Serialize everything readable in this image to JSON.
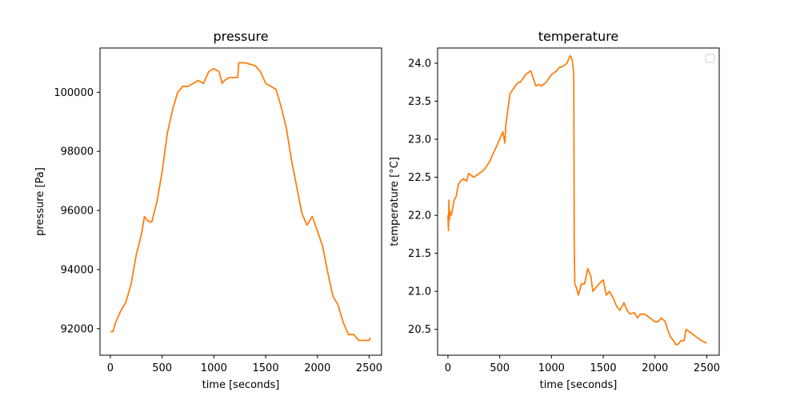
{
  "chart_data": [
    {
      "type": "line",
      "title": "pressure",
      "xlabel": "time [seconds]",
      "ylabel": "pressure [Pa]",
      "xlim": [
        -100,
        2620
      ],
      "ylim": [
        91100,
        101500
      ],
      "x_ticks": [
        0,
        500,
        1000,
        1500,
        2000,
        2500
      ],
      "y_ticks": [
        92000,
        94000,
        96000,
        98000,
        100000
      ],
      "color": "#ff7f0e",
      "grid": false,
      "series": [
        {
          "x": [
            0,
            25,
            50,
            100,
            150,
            200,
            250,
            300,
            330,
            360,
            400,
            450,
            500,
            550,
            600,
            650,
            700,
            750,
            800,
            850,
            900,
            950,
            1000,
            1050,
            1080,
            1100,
            1150,
            1200,
            1230,
            1240,
            1300,
            1350,
            1400,
            1450,
            1500,
            1550,
            1600,
            1650,
            1700,
            1750,
            1800,
            1850,
            1900,
            1950,
            2000,
            2050,
            2100,
            2150,
            2200,
            2250,
            2300,
            2350,
            2400,
            2450,
            2500,
            2510
          ],
          "y": [
            91900,
            91900,
            92200,
            92600,
            92900,
            93500,
            94500,
            95200,
            95800,
            95650,
            95600,
            96300,
            97300,
            98600,
            99400,
            100000,
            100200,
            100200,
            100300,
            100400,
            100300,
            100700,
            100800,
            100700,
            100300,
            100400,
            100500,
            100500,
            100500,
            101000,
            101000,
            100950,
            100900,
            100700,
            100300,
            100200,
            100100,
            99500,
            98800,
            97700,
            96800,
            95900,
            95500,
            95800,
            95300,
            94800,
            93900,
            93100,
            92800,
            92200,
            91800,
            91800,
            91600,
            91600,
            91600,
            91700
          ]
        }
      ]
    },
    {
      "type": "line",
      "title": "temperature",
      "xlabel": "time [seconds]",
      "ylabel": "temperature [°C]",
      "xlim": [
        -100,
        2620
      ],
      "ylim": [
        20.16,
        24.2
      ],
      "x_ticks": [
        0,
        500,
        1000,
        1500,
        2000,
        2500
      ],
      "y_ticks": [
        20.5,
        21.0,
        21.5,
        22.0,
        22.5,
        23.0,
        23.5,
        24.0
      ],
      "y_tick_labels": [
        "20.5",
        "21.0",
        "21.5",
        "22.0",
        "22.5",
        "23.0",
        "23.5",
        "24.0"
      ],
      "color": "#ff7f0e",
      "grid": false,
      "legend": "top-right",
      "series": [
        {
          "x": [
            0,
            5,
            10,
            15,
            20,
            30,
            40,
            60,
            80,
            100,
            120,
            150,
            180,
            200,
            250,
            300,
            350,
            400,
            450,
            500,
            530,
            550,
            560,
            580,
            600,
            650,
            680,
            700,
            750,
            800,
            850,
            880,
            900,
            950,
            1000,
            1050,
            1080,
            1100,
            1150,
            1180,
            1200,
            1215,
            1220,
            1225,
            1240,
            1260,
            1290,
            1320,
            1350,
            1380,
            1400,
            1430,
            1460,
            1500,
            1530,
            1560,
            1600,
            1630,
            1660,
            1700,
            1730,
            1760,
            1800,
            1830,
            1860,
            1900,
            1950,
            2000,
            2030,
            2060,
            2100,
            2120,
            2150,
            2180,
            2200,
            2220,
            2250,
            2280,
            2300,
            2320,
            2350,
            2380,
            2400,
            2420,
            2450,
            2480,
            2500
          ],
          "y": [
            22.0,
            21.8,
            22.2,
            21.95,
            22.05,
            22.0,
            22.05,
            22.2,
            22.25,
            22.4,
            22.45,
            22.48,
            22.45,
            22.55,
            22.5,
            22.55,
            22.6,
            22.7,
            22.85,
            23.0,
            23.1,
            22.95,
            23.2,
            23.4,
            23.6,
            23.7,
            23.75,
            23.75,
            23.85,
            23.9,
            23.7,
            23.72,
            23.7,
            23.75,
            23.85,
            23.9,
            23.95,
            23.95,
            24.0,
            24.1,
            24.05,
            23.85,
            21.6,
            21.1,
            21.05,
            20.95,
            21.1,
            21.1,
            21.3,
            21.2,
            21.0,
            21.05,
            21.1,
            21.15,
            20.95,
            21.0,
            20.9,
            20.8,
            20.75,
            20.85,
            20.75,
            20.7,
            20.72,
            20.65,
            20.7,
            20.7,
            20.65,
            20.6,
            20.6,
            20.65,
            20.6,
            20.5,
            20.4,
            20.35,
            20.3,
            20.3,
            20.35,
            20.35,
            20.5,
            20.48,
            20.45,
            20.42,
            20.4,
            20.38,
            20.35,
            20.33,
            20.32
          ]
        }
      ]
    }
  ]
}
